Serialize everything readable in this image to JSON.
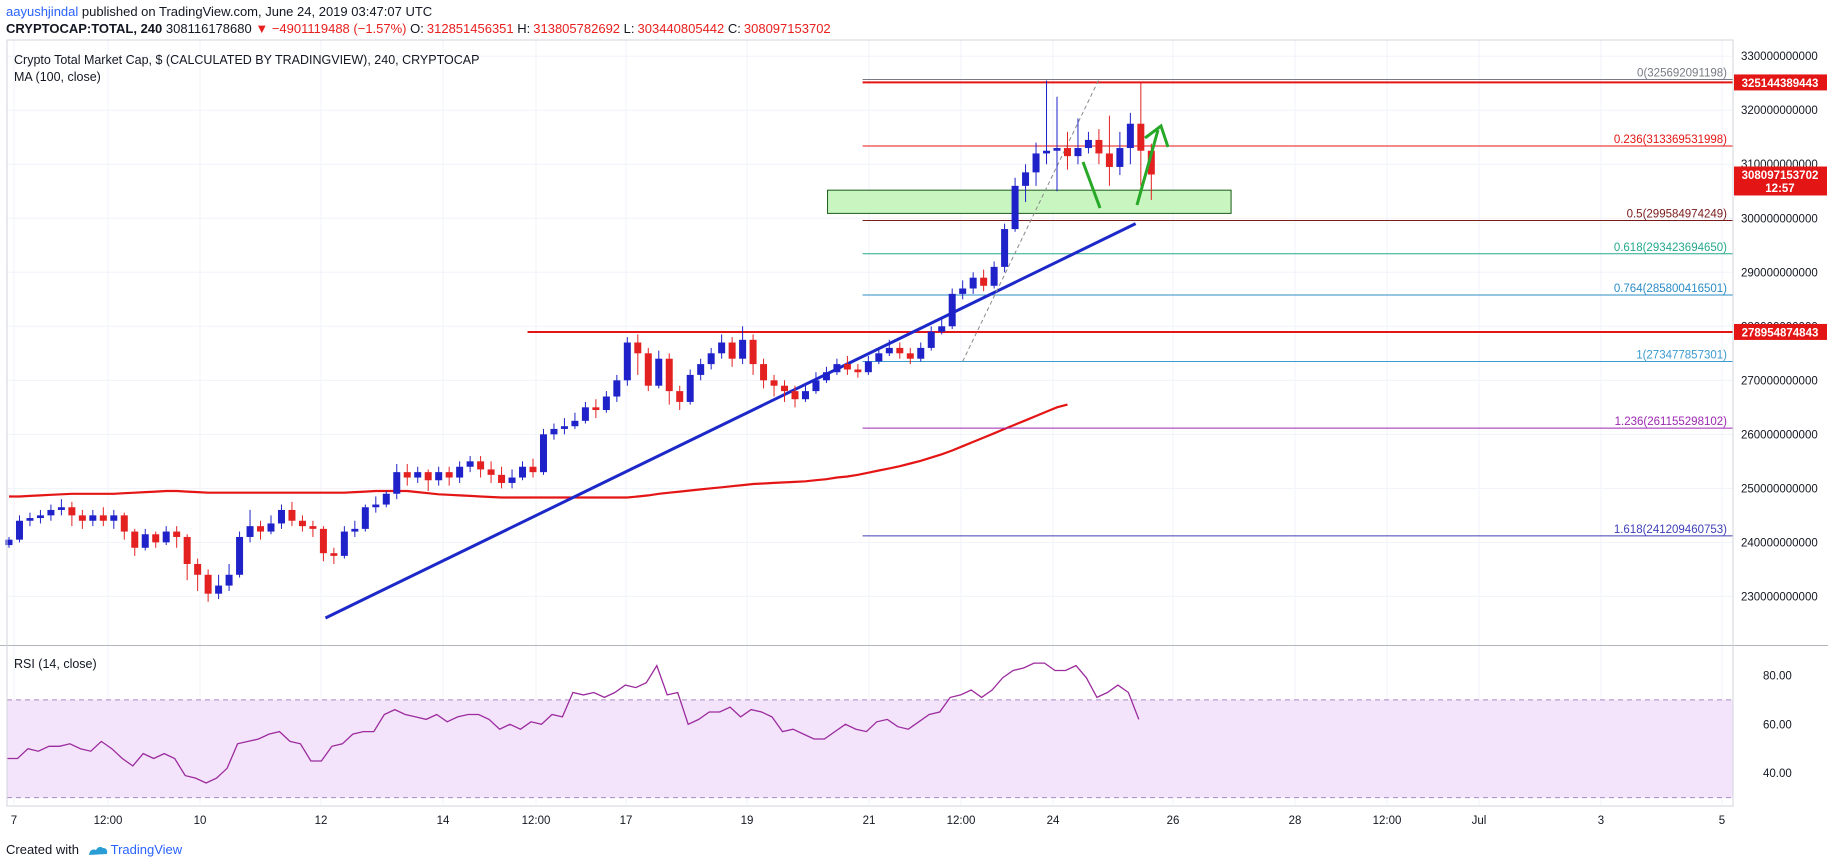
{
  "header": {
    "author": "aayushjindal",
    "published_text": "published on TradingView.com, June 24, 2019 03:47:07 UTC",
    "symbol": "CRYPTOCAP:TOTAL, 240",
    "last": "308116178680",
    "change": "−4901119488 (−1.57%)",
    "open_label": "O:",
    "open": "312851456351",
    "high_label": "H:",
    "high": "313805782692",
    "low_label": "L:",
    "low": "303440805442",
    "close_label": "C:",
    "close": "308097153702"
  },
  "legend": {
    "title": "Crypto Total Market Cap, $ (CALCULATED BY TRADINGVIEW), 240, CRYPTOCAP",
    "ma": "MA (100, close)"
  },
  "rsi_legend": "RSI (14, close)",
  "footer": {
    "created_with": "Created with",
    "brand": "TradingView"
  },
  "colors": {
    "up": "#1e22c8",
    "down": "#e42121",
    "ma": "#e41515",
    "trend": "#1d28c9",
    "resistance": "#e41515",
    "zone_fill": "#c8f5c0",
    "arrow": "#27a827",
    "rsi": "#9c2b9e",
    "rsi_band": "#f3e4fb"
  },
  "chart_data": [
    {
      "type": "candlestick",
      "title": "Crypto Total Market Cap, $ (CALCULATED BY TRADINGVIEW), 240, CRYPTOCAP",
      "x_ticks": [
        "7",
        "12:00",
        "10",
        "12",
        "14",
        "12:00",
        "17",
        "19",
        "21",
        "12:00",
        "24",
        "26",
        "28",
        "12:00",
        "Jul",
        "3",
        "5"
      ],
      "ylim": [
        221000000000,
        333000000000
      ],
      "y_ticks": [
        230000000000,
        240000000000,
        250000000000,
        260000000000,
        270000000000,
        280000000000,
        290000000000,
        300000000000,
        310000000000,
        320000000000,
        330000000000
      ],
      "y_tick_labels": [
        "230000000000",
        "240000000000",
        "250000000000",
        "260000000000",
        "270000000000",
        "280000000000",
        "290000000000",
        "300000000000",
        "310000000000",
        "320000000000",
        "330000000000"
      ],
      "price_labels": [
        {
          "value": 325144389443,
          "text": "325144389443",
          "color": "#e41515"
        },
        {
          "value": 308097153702,
          "text": "308097153702",
          "color": "#e41515"
        },
        {
          "value": 305700000000,
          "text": "12:57",
          "color": "#e41515"
        },
        {
          "value": 278954874843,
          "text": "278954874843",
          "color": "#e41515"
        }
      ],
      "candles_4h": [
        [
          239.5,
          240.5,
          239.0,
          241.0
        ],
        [
          240.5,
          244.0,
          240.0,
          245.0
        ],
        [
          244.0,
          244.5,
          243.0,
          245.5
        ],
        [
          244.5,
          245.0,
          243.5,
          246.0
        ],
        [
          245.0,
          246.0,
          244.0,
          247.0
        ],
        [
          246.0,
          246.5,
          245.0,
          248.0
        ],
        [
          246.5,
          245.0,
          243.0,
          247.5
        ],
        [
          245.0,
          244.0,
          242.5,
          246.0
        ],
        [
          244.0,
          245.0,
          243.0,
          246.0
        ],
        [
          245.0,
          244.0,
          243.0,
          246.5
        ],
        [
          244.0,
          245.0,
          242.5,
          246.0
        ],
        [
          245.0,
          242.0,
          240.5,
          245.5
        ],
        [
          242.0,
          239.0,
          237.5,
          242.5
        ],
        [
          239.0,
          241.5,
          238.5,
          242.5
        ],
        [
          241.5,
          240.0,
          239.0,
          242.0
        ],
        [
          240.0,
          242.0,
          239.5,
          243.0
        ],
        [
          242.0,
          241.0,
          239.0,
          243.0
        ],
        [
          241.0,
          236.0,
          233.0,
          241.5
        ],
        [
          236.0,
          234.0,
          231.0,
          237.0
        ],
        [
          234.0,
          230.5,
          229.0,
          235.0
        ],
        [
          230.5,
          232.0,
          229.5,
          234.0
        ],
        [
          232.0,
          234.0,
          231.0,
          236.0
        ],
        [
          234.0,
          241.0,
          233.5,
          242.0
        ],
        [
          241.0,
          243.0,
          240.0,
          246.0
        ],
        [
          243.0,
          242.0,
          240.5,
          244.0
        ],
        [
          242.0,
          243.5,
          241.5,
          245.0
        ],
        [
          243.5,
          246.0,
          242.5,
          247.0
        ],
        [
          246.0,
          244.0,
          243.0,
          247.5
        ],
        [
          244.0,
          243.0,
          242.0,
          245.0
        ],
        [
          243.0,
          242.5,
          241.0,
          244.0
        ],
        [
          242.5,
          238.0,
          236.5,
          243.0
        ],
        [
          238.0,
          237.5,
          236.0,
          239.0
        ],
        [
          237.5,
          242.0,
          237.0,
          243.0
        ],
        [
          242.0,
          242.5,
          241.0,
          244.0
        ],
        [
          242.5,
          246.5,
          242.0,
          247.0
        ],
        [
          246.5,
          247.0,
          245.5,
          248.5
        ],
        [
          247.0,
          249.0,
          246.5,
          249.5
        ],
        [
          249.0,
          253.0,
          248.0,
          254.5
        ],
        [
          253.0,
          252.0,
          250.5,
          254.5
        ],
        [
          252.0,
          253.0,
          251.0,
          254.0
        ],
        [
          253.0,
          251.5,
          249.5,
          253.5
        ],
        [
          251.5,
          253.0,
          250.5,
          254.0
        ],
        [
          253.0,
          252.0,
          250.5,
          254.0
        ],
        [
          252.0,
          254.0,
          251.0,
          255.0
        ],
        [
          254.0,
          255.0,
          253.0,
          256.0
        ],
        [
          255.0,
          253.5,
          252.0,
          256.0
        ],
        [
          253.5,
          252.5,
          251.0,
          255.0
        ],
        [
          252.5,
          251.0,
          250.0,
          254.0
        ],
        [
          251.0,
          252.0,
          250.0,
          253.5
        ],
        [
          252.0,
          254.0,
          251.5,
          255.0
        ],
        [
          254.0,
          253.0,
          252.0,
          255.5
        ],
        [
          253.0,
          260.0,
          252.5,
          261.0
        ],
        [
          260.0,
          261.0,
          259.0,
          262.0
        ],
        [
          261.0,
          261.5,
          260.0,
          263.0
        ],
        [
          261.5,
          262.5,
          261.0,
          264.0
        ],
        [
          262.5,
          265.0,
          262.0,
          266.0
        ],
        [
          265.0,
          264.5,
          263.0,
          266.5
        ],
        [
          264.5,
          267.0,
          264.0,
          268.0
        ],
        [
          267.0,
          270.0,
          266.0,
          271.0
        ],
        [
          270.0,
          277.0,
          269.0,
          278.0
        ],
        [
          277.0,
          275.0,
          271.0,
          278.5
        ],
        [
          275.0,
          269.0,
          268.0,
          276.0
        ],
        [
          269.0,
          274.0,
          268.5,
          275.5
        ],
        [
          274.0,
          268.0,
          265.5,
          275.0
        ],
        [
          268.0,
          266.0,
          264.5,
          269.0
        ],
        [
          266.0,
          271.0,
          265.5,
          272.0
        ],
        [
          271.0,
          273.0,
          270.0,
          274.0
        ],
        [
          273.0,
          275.0,
          272.0,
          276.0
        ],
        [
          275.0,
          277.0,
          274.0,
          278.5
        ],
        [
          277.0,
          274.0,
          272.5,
          278.0
        ],
        [
          274.0,
          277.5,
          273.0,
          280.0
        ],
        [
          277.5,
          273.0,
          271.0,
          278.5
        ],
        [
          273.0,
          270.0,
          268.5,
          274.0
        ],
        [
          270.0,
          269.0,
          267.0,
          271.0
        ],
        [
          269.0,
          268.0,
          266.0,
          270.0
        ],
        [
          268.0,
          266.5,
          265.0,
          269.0
        ],
        [
          266.5,
          268.0,
          266.0,
          269.0
        ],
        [
          268.0,
          270.0,
          267.5,
          271.5
        ],
        [
          270.0,
          271.5,
          269.5,
          272.5
        ],
        [
          271.5,
          273.0,
          271.0,
          274.0
        ],
        [
          273.0,
          272.0,
          271.0,
          274.5
        ],
        [
          272.0,
          271.5,
          270.5,
          273.0
        ],
        [
          271.5,
          273.5,
          271.0,
          274.5
        ],
        [
          273.5,
          275.0,
          273.0,
          276.0
        ],
        [
          275.0,
          276.0,
          274.5,
          277.5
        ],
        [
          276.0,
          275.0,
          274.0,
          277.0
        ],
        [
          275.0,
          274.0,
          273.0,
          276.0
        ],
        [
          274.0,
          276.0,
          273.5,
          277.0
        ],
        [
          276.0,
          279.0,
          275.5,
          280.0
        ],
        [
          279.0,
          280.0,
          278.5,
          281.5
        ],
        [
          280.0,
          286.0,
          279.5,
          287.0
        ],
        [
          286.0,
          287.0,
          285.0,
          288.5
        ],
        [
          287.0,
          289.0,
          286.0,
          290.0
        ],
        [
          289.0,
          287.5,
          286.5,
          290.5
        ],
        [
          287.5,
          291.0,
          287.0,
          292.0
        ],
        [
          291.0,
          298.0,
          290.0,
          299.0
        ],
        [
          298.0,
          306.0,
          297.5,
          307.5
        ],
        [
          306.0,
          308.5,
          303.0,
          310.0
        ],
        [
          308.5,
          312.0,
          306.0,
          314.0
        ],
        [
          312.0,
          312.5,
          310.0,
          325.5
        ],
        [
          312.5,
          313.0,
          305.0,
          322.5
        ],
        [
          313.0,
          311.5,
          309.0,
          316.0
        ],
        [
          311.5,
          313.0,
          310.0,
          318.5
        ],
        [
          313.0,
          314.5,
          312.0,
          316.0
        ],
        [
          314.5,
          312.0,
          310.0,
          316.5
        ],
        [
          312.0,
          309.5,
          306.0,
          319.0
        ],
        [
          309.5,
          313.0,
          308.0,
          316.0
        ],
        [
          313.0,
          317.5,
          310.0,
          319.5
        ],
        [
          317.5,
          312.5,
          306.0,
          325.1
        ],
        [
          312.5,
          308.1,
          303.4,
          313.8
        ]
      ],
      "ma_100": [
        248.5,
        248.5,
        248.6,
        248.7,
        248.8,
        248.9,
        249.0,
        249.0,
        249.0,
        249.0,
        249.0,
        249.1,
        249.2,
        249.3,
        249.4,
        249.5,
        249.5,
        249.4,
        249.3,
        249.2,
        249.2,
        249.2,
        249.2,
        249.2,
        249.2,
        249.2,
        249.2,
        249.2,
        249.2,
        249.2,
        249.2,
        249.2,
        249.2,
        249.3,
        249.4,
        249.5,
        249.5,
        249.5,
        249.5,
        249.3,
        249.1,
        248.9,
        248.8,
        248.7,
        248.6,
        248.5,
        248.4,
        248.3,
        248.3,
        248.3,
        248.3,
        248.3,
        248.3,
        248.3,
        248.3,
        248.3,
        248.3,
        248.3,
        248.3,
        248.3,
        248.5,
        248.7,
        249.0,
        249.2,
        249.4,
        249.6,
        249.8,
        250.0,
        250.2,
        250.4,
        250.6,
        250.8,
        250.9,
        251.0,
        251.1,
        251.2,
        251.3,
        251.5,
        251.7,
        252.0,
        252.2,
        252.5,
        252.9,
        253.3,
        253.7,
        254.1,
        254.6,
        255.1,
        255.7,
        256.3,
        257.0,
        257.8,
        258.6,
        259.4,
        260.2,
        261.0,
        261.8,
        262.6,
        263.4,
        264.2,
        265.0,
        265.5
      ],
      "trendline": {
        "from": [
          0.1845,
          226.0
        ],
        "to": [
          0.6539,
          299.0
        ]
      },
      "horizontal_lines": [
        {
          "level": 325144389443,
          "from_frac": 0.4957,
          "to_frac": 1.0,
          "color": "#e41515"
        },
        {
          "level": 278954874843,
          "from_frac": 0.3016,
          "to_frac": 1.0,
          "color": "#e41515"
        }
      ],
      "zone": {
        "low": 300900000000,
        "high": 305200000000,
        "from_frac": 0.4754,
        "to_frac": 0.7092
      },
      "fibonacci": [
        {
          "ratio_label": "0",
          "value": 325692091198,
          "text": "325692091198",
          "color": "#787b86"
        },
        {
          "ratio_label": "0.236",
          "value": 313369531998,
          "text": "313369531998",
          "color": "#e41515"
        },
        {
          "ratio_label": "0.5",
          "value": 299584974249,
          "text": "299584974249",
          "color": "#7a1a1a"
        },
        {
          "ratio_label": "0.618",
          "value": 293423694650,
          "text": "293423694650",
          "color": "#24a88c"
        },
        {
          "ratio_label": "0.764",
          "value": 285800416501,
          "text": "285800416501",
          "color": "#2a8cc6"
        },
        {
          "ratio_label": "1",
          "value": 273477857301,
          "text": "273477857301",
          "color": "#3a9bd0"
        },
        {
          "ratio_label": "1.236",
          "value": 261155298102,
          "text": "261155298102",
          "color": "#9c27b0"
        },
        {
          "ratio_label": "1.618",
          "value": 241209460753,
          "text": "241209460753",
          "color": "#3f3fb8"
        }
      ]
    },
    {
      "type": "line",
      "title": "RSI (14, close)",
      "ylim": [
        27,
        92
      ],
      "y_ticks": [
        40,
        60,
        80
      ],
      "y_tick_labels": [
        "40.00",
        "60.00",
        "80.00"
      ],
      "band": [
        30,
        70
      ],
      "values": [
        46,
        46,
        50,
        49,
        51,
        51,
        52,
        50,
        49,
        53,
        50,
        46,
        43,
        48,
        46,
        48,
        46,
        39,
        38,
        36,
        38,
        42,
        52,
        53,
        54,
        56,
        57,
        53,
        52,
        45,
        45,
        51,
        52,
        56,
        57,
        57,
        64,
        66,
        64,
        63,
        62,
        64,
        61,
        63,
        64,
        64,
        62,
        58,
        60,
        58,
        61,
        60,
        64,
        63,
        73,
        72,
        73,
        71,
        73,
        76,
        75,
        77,
        84,
        72,
        73,
        60,
        62,
        65,
        65,
        67,
        63,
        66,
        65,
        63,
        57,
        58,
        56,
        54,
        54,
        57,
        60,
        58,
        57,
        61,
        62,
        59,
        58,
        61,
        64,
        65,
        71,
        72,
        74,
        71,
        74,
        79,
        82,
        83,
        85,
        85,
        82,
        82,
        84,
        79,
        71,
        73,
        76,
        73,
        62
      ]
    }
  ]
}
